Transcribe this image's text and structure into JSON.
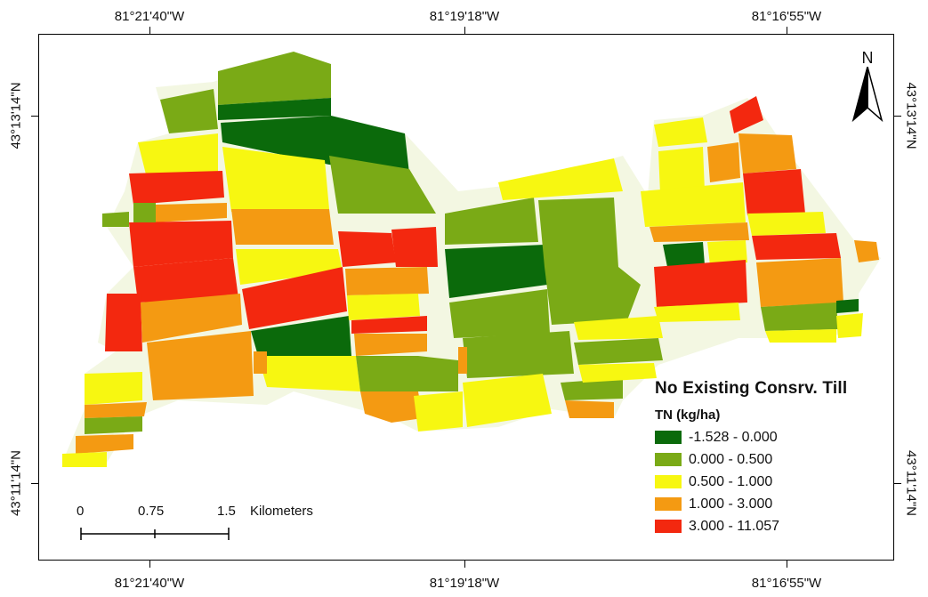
{
  "coordinates": {
    "top": [
      "81°21'40\"W",
      "81°19'18\"W",
      "81°16'55\"W"
    ],
    "bottom": [
      "81°21'40\"W",
      "81°19'18\"W",
      "81°16'55\"W"
    ],
    "left": [
      "43°13'14\"N",
      "43°11'14\"N"
    ],
    "right": [
      "43°13'14\"N",
      "43°11'14\"N"
    ]
  },
  "north_arrow": {
    "label": "N"
  },
  "legend": {
    "title": "No Existing Consrv. Till",
    "subtitle": "TN (kg/ha)",
    "classes": [
      {
        "label": "-1.528 - 0.000",
        "color": "#0b6a0b"
      },
      {
        "label": "0.000 - 0.500",
        "color": "#7aaa16"
      },
      {
        "label": "0.500 - 1.000",
        "color": "#f7f711"
      },
      {
        "label": "1.000 - 3.000",
        "color": "#f49a12"
      },
      {
        "label": "3.000 - 11.057",
        "color": "#f3280f"
      }
    ]
  },
  "scale_bar": {
    "labels": [
      "0",
      "0.75",
      "1.5"
    ],
    "unit": "Kilometers"
  }
}
